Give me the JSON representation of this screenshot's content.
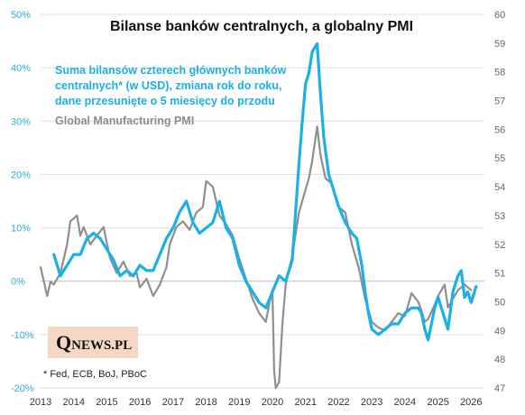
{
  "chart_data": {
    "type": "line",
    "title": "Bilanse banków centralnych, a globalny PMI",
    "legend": [
      "Suma bilansów czterech głównych banków",
      "centralnych* (w USD), zmiana rok do roku,",
      "dane przesunięte o 5 miesięcy do przodu",
      "Global Manufacturing PMI"
    ],
    "footnote": "* Fed, ECB, BoJ, PBoC",
    "logo": "QNEWS.PL",
    "xlim": [
      2013,
      2026.4
    ],
    "x_ticks": [
      "2013",
      "2014",
      "2015",
      "2016",
      "2017",
      "2018",
      "2019",
      "2020",
      "2021",
      "2022",
      "2023",
      "2024",
      "2025",
      "2026"
    ],
    "ylim_left": [
      -20,
      50
    ],
    "y_ticks_left": [
      "-20%",
      "-10%",
      "0%",
      "10%",
      "20%",
      "30%",
      "40%",
      "50%"
    ],
    "ylim_right": [
      47,
      60
    ],
    "y_ticks_right": [
      "47",
      "48",
      "49",
      "50",
      "51",
      "52",
      "53",
      "54",
      "55",
      "56",
      "57",
      "58",
      "59",
      "60"
    ],
    "grid": "horizontal",
    "series": [
      {
        "color": "#1AB0E8",
        "axis": "left",
        "points": [
          [
            2013.4,
            5
          ],
          [
            2013.6,
            1
          ],
          [
            2013.8,
            3
          ],
          [
            2014.0,
            5
          ],
          [
            2014.2,
            5
          ],
          [
            2014.4,
            8
          ],
          [
            2014.6,
            9
          ],
          [
            2014.8,
            8
          ],
          [
            2015.0,
            6
          ],
          [
            2015.2,
            4
          ],
          [
            2015.4,
            1
          ],
          [
            2015.6,
            2
          ],
          [
            2015.8,
            1
          ],
          [
            2016.0,
            3
          ],
          [
            2016.2,
            2
          ],
          [
            2016.4,
            2
          ],
          [
            2016.6,
            5
          ],
          [
            2016.8,
            8
          ],
          [
            2017.0,
            10
          ],
          [
            2017.2,
            13
          ],
          [
            2017.4,
            15
          ],
          [
            2017.6,
            11
          ],
          [
            2017.8,
            9
          ],
          [
            2018.0,
            10
          ],
          [
            2018.2,
            11
          ],
          [
            2018.4,
            15
          ],
          [
            2018.6,
            10
          ],
          [
            2018.8,
            8
          ],
          [
            2019.0,
            3
          ],
          [
            2019.2,
            0
          ],
          [
            2019.4,
            -2
          ],
          [
            2019.6,
            -4
          ],
          [
            2019.8,
            -5
          ],
          [
            2020.0,
            -2
          ],
          [
            2020.2,
            1
          ],
          [
            2020.4,
            0
          ],
          [
            2020.6,
            4
          ],
          [
            2020.8,
            22
          ],
          [
            2020.9,
            30
          ],
          [
            2021.0,
            37
          ],
          [
            2021.1,
            39
          ],
          [
            2021.2,
            43
          ],
          [
            2021.35,
            44.5
          ],
          [
            2021.45,
            35
          ],
          [
            2021.55,
            27
          ],
          [
            2021.7,
            20
          ],
          [
            2021.85,
            17
          ],
          [
            2022.0,
            14
          ],
          [
            2022.2,
            11
          ],
          [
            2022.4,
            9
          ],
          [
            2022.55,
            8
          ],
          [
            2022.7,
            3
          ],
          [
            2022.8,
            -2
          ],
          [
            2022.9,
            -6
          ],
          [
            2023.0,
            -9
          ],
          [
            2023.2,
            -10
          ],
          [
            2023.4,
            -9
          ],
          [
            2023.6,
            -8
          ],
          [
            2023.8,
            -8
          ],
          [
            2024.0,
            -6
          ],
          [
            2024.2,
            -5
          ],
          [
            2024.4,
            -5
          ],
          [
            2024.5,
            -6
          ],
          [
            2024.6,
            -9
          ],
          [
            2024.7,
            -11
          ],
          [
            2024.8,
            -8
          ],
          [
            2024.9,
            -5
          ],
          [
            2025.0,
            -3
          ],
          [
            2025.1,
            -5
          ],
          [
            2025.2,
            -7
          ],
          [
            2025.3,
            -9
          ],
          [
            2025.45,
            -2
          ],
          [
            2025.6,
            1
          ],
          [
            2025.7,
            2
          ],
          [
            2025.8,
            -3
          ],
          [
            2025.9,
            -2
          ],
          [
            2026.0,
            -4
          ],
          [
            2026.15,
            -1
          ]
        ]
      },
      {
        "color": "#8f8f8f",
        "axis": "right",
        "points": [
          [
            2013.0,
            51.2
          ],
          [
            2013.1,
            50.7
          ],
          [
            2013.2,
            50.2
          ],
          [
            2013.3,
            50.7
          ],
          [
            2013.4,
            50.6
          ],
          [
            2013.6,
            51.0
          ],
          [
            2013.8,
            52.0
          ],
          [
            2013.9,
            52.8
          ],
          [
            2014.1,
            53.0
          ],
          [
            2014.2,
            52.3
          ],
          [
            2014.3,
            52.6
          ],
          [
            2014.5,
            52.0
          ],
          [
            2014.7,
            52.3
          ],
          [
            2014.9,
            52.6
          ],
          [
            2015.1,
            51.5
          ],
          [
            2015.3,
            51.0
          ],
          [
            2015.5,
            51.4
          ],
          [
            2015.7,
            50.9
          ],
          [
            2015.9,
            51.0
          ],
          [
            2016.0,
            50.5
          ],
          [
            2016.2,
            50.8
          ],
          [
            2016.4,
            50.2
          ],
          [
            2016.6,
            50.6
          ],
          [
            2016.8,
            51.2
          ],
          [
            2016.9,
            52.0
          ],
          [
            2017.1,
            52.6
          ],
          [
            2017.3,
            52.8
          ],
          [
            2017.5,
            52.5
          ],
          [
            2017.7,
            53.1
          ],
          [
            2017.9,
            53.3
          ],
          [
            2018.0,
            54.2
          ],
          [
            2018.2,
            54.0
          ],
          [
            2018.4,
            53.0
          ],
          [
            2018.6,
            52.7
          ],
          [
            2018.8,
            52.3
          ],
          [
            2019.0,
            51.5
          ],
          [
            2019.2,
            50.8
          ],
          [
            2019.4,
            50.1
          ],
          [
            2019.6,
            49.6
          ],
          [
            2019.8,
            49.3
          ],
          [
            2019.9,
            49.9
          ],
          [
            2020.0,
            50.4
          ],
          [
            2020.05,
            47.6
          ],
          [
            2020.1,
            47.0
          ],
          [
            2020.2,
            47.2
          ],
          [
            2020.3,
            49.2
          ],
          [
            2020.4,
            50.6
          ],
          [
            2020.6,
            51.6
          ],
          [
            2020.8,
            53.1
          ],
          [
            2021.0,
            53.9
          ],
          [
            2021.1,
            54.3
          ],
          [
            2021.2,
            54.9
          ],
          [
            2021.35,
            56.1
          ],
          [
            2021.45,
            55.1
          ],
          [
            2021.6,
            54.3
          ],
          [
            2021.8,
            54.1
          ],
          [
            2022.0,
            53.3
          ],
          [
            2022.2,
            53.1
          ],
          [
            2022.4,
            52.0
          ],
          [
            2022.6,
            51.2
          ],
          [
            2022.8,
            50.1
          ],
          [
            2023.0,
            49.3
          ],
          [
            2023.2,
            49.1
          ],
          [
            2023.4,
            49.0
          ],
          [
            2023.6,
            49.3
          ],
          [
            2023.8,
            49.6
          ],
          [
            2024.0,
            49.5
          ],
          [
            2024.2,
            50.3
          ],
          [
            2024.4,
            50.0
          ],
          [
            2024.5,
            49.7
          ],
          [
            2024.6,
            49.3
          ],
          [
            2024.7,
            49.4
          ],
          [
            2024.9,
            49.9
          ],
          [
            2025.0,
            50.2
          ],
          [
            2025.2,
            50.6
          ],
          [
            2025.3,
            49.8
          ],
          [
            2025.4,
            50.0
          ],
          [
            2025.6,
            50.4
          ],
          [
            2025.8,
            50.6
          ],
          [
            2026.0,
            50.4
          ]
        ]
      }
    ]
  }
}
